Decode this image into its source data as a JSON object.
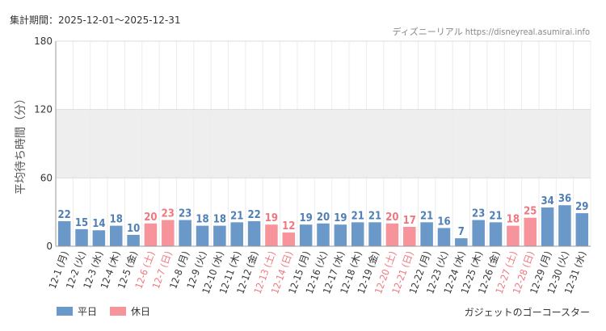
{
  "header": {
    "period": "集計期間：2025-12-01～2025-12-31",
    "credit": "ディズニーリアル https://disneyreal.asumirai.info"
  },
  "colors": {
    "weekday": "#6a98c8",
    "holiday": "#f7939a",
    "weekday_label": "#4f7fb3",
    "holiday_label": "#f0767f",
    "band": "#eeeeee",
    "grid": "#dddddd"
  },
  "legend": [
    {
      "label": "平日",
      "key": "weekday"
    },
    {
      "label": "休日",
      "key": "holiday"
    }
  ],
  "footer": {
    "attraction": "ガジェットのゴーコースター"
  },
  "chart_data": {
    "type": "bar",
    "ylabel": "平均待ち時間（分）",
    "ylim": [
      0,
      180
    ],
    "yticks": [
      0,
      60,
      120,
      180
    ],
    "shaded_band": [
      60,
      120
    ],
    "grid": true,
    "legend_position": "bottom-left",
    "categories": [
      "12-1 (月)",
      "12-2 (火)",
      "12-3 (水)",
      "12-4 (木)",
      "12-5 (金)",
      "12-6 (土)",
      "12-7 (日)",
      "12-8 (月)",
      "12-9 (火)",
      "12-10 (水)",
      "12-11 (木)",
      "12-12 (金)",
      "12-13 (土)",
      "12-14 (日)",
      "12-15 (月)",
      "12-16 (火)",
      "12-17 (水)",
      "12-18 (木)",
      "12-19 (金)",
      "12-20 (土)",
      "12-21 (日)",
      "12-22 (月)",
      "12-23 (火)",
      "12-24 (水)",
      "12-25 (木)",
      "12-26 (金)",
      "12-27 (土)",
      "12-28 (日)",
      "12-29 (月)",
      "12-30 (火)",
      "12-31 (水)"
    ],
    "values": [
      22,
      15,
      14,
      18,
      10,
      20,
      23,
      23,
      18,
      18,
      21,
      22,
      19,
      12,
      19,
      20,
      19,
      21,
      21,
      20,
      17,
      21,
      16,
      7,
      23,
      21,
      18,
      25,
      34,
      36,
      29
    ],
    "day_type": [
      "weekday",
      "weekday",
      "weekday",
      "weekday",
      "weekday",
      "holiday",
      "holiday",
      "weekday",
      "weekday",
      "weekday",
      "weekday",
      "weekday",
      "holiday",
      "holiday",
      "weekday",
      "weekday",
      "weekday",
      "weekday",
      "weekday",
      "holiday",
      "holiday",
      "weekday",
      "weekday",
      "weekday",
      "weekday",
      "weekday",
      "holiday",
      "holiday",
      "weekday",
      "weekday",
      "weekday"
    ]
  }
}
